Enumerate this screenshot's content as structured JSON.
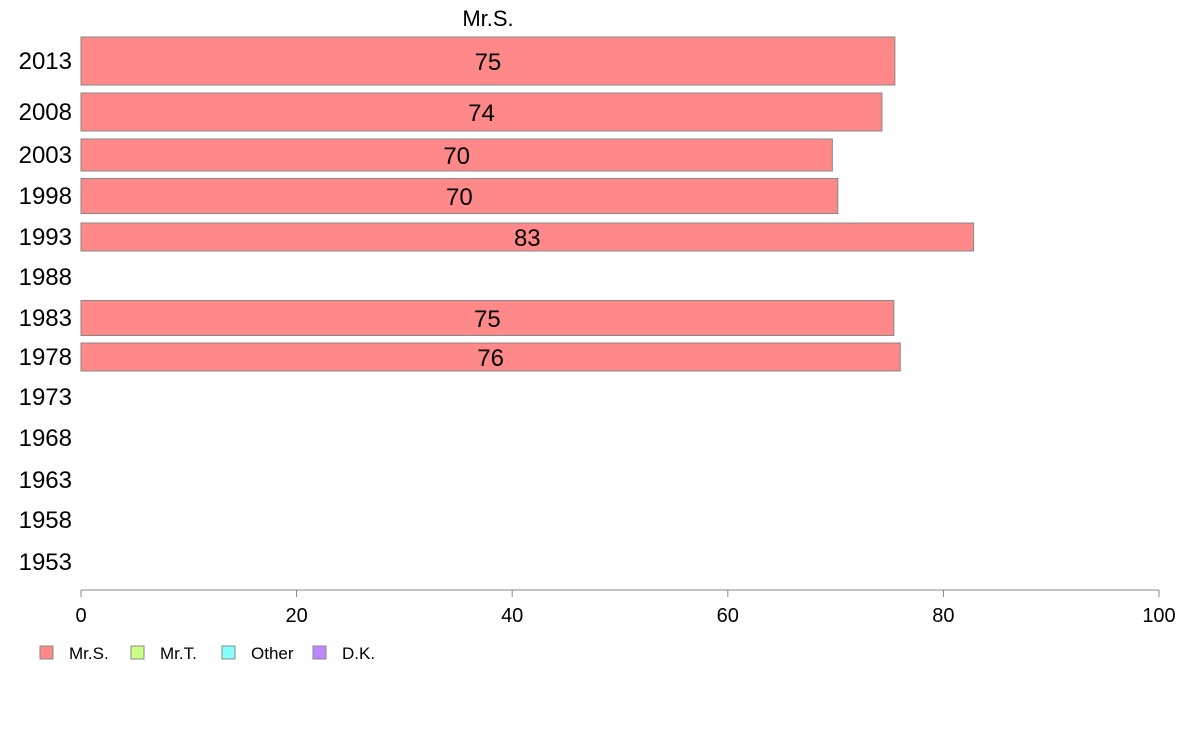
{
  "chart_data": {
    "type": "bar",
    "orientation": "horizontal",
    "title": "",
    "xlabel": "",
    "ylabel": "",
    "xlim": [
      0,
      100
    ],
    "x_ticks": [
      0,
      20,
      40,
      60,
      80,
      100
    ],
    "grid": false,
    "categories": [
      "2013",
      "2008",
      "2003",
      "1998",
      "1993",
      "1988",
      "1983",
      "1978",
      "1973",
      "1968",
      "1963",
      "1958",
      "1953"
    ],
    "series": [
      {
        "name": "Mr.S.",
        "color": "#ff8888",
        "values": [
          75.5,
          74.3,
          69.7,
          70.2,
          82.8,
          null,
          75.4,
          76.0,
          null,
          null,
          null,
          null,
          null
        ],
        "labels": [
          "75",
          "74",
          "70",
          "70",
          "83",
          "",
          "75",
          "76",
          "",
          "",
          "",
          "",
          ""
        ]
      },
      {
        "name": "Mr.T.",
        "color": "#ccff88",
        "values": [
          null,
          null,
          null,
          null,
          null,
          null,
          null,
          null,
          null,
          null,
          null,
          null,
          null
        ]
      },
      {
        "name": "Other",
        "color": "#88ffff",
        "values": [
          null,
          null,
          null,
          null,
          null,
          null,
          null,
          null,
          null,
          null,
          null,
          null,
          null
        ]
      },
      {
        "name": "D.K.",
        "color": "#bb88ff",
        "values": [
          null,
          null,
          null,
          null,
          null,
          null,
          null,
          null,
          null,
          null,
          null,
          null,
          null
        ]
      }
    ],
    "legend": {
      "position": "bottom-left",
      "items": [
        "Mr.S.",
        "Mr.T.",
        "Other",
        "D.K."
      ]
    },
    "series_header": "Mr.S."
  }
}
